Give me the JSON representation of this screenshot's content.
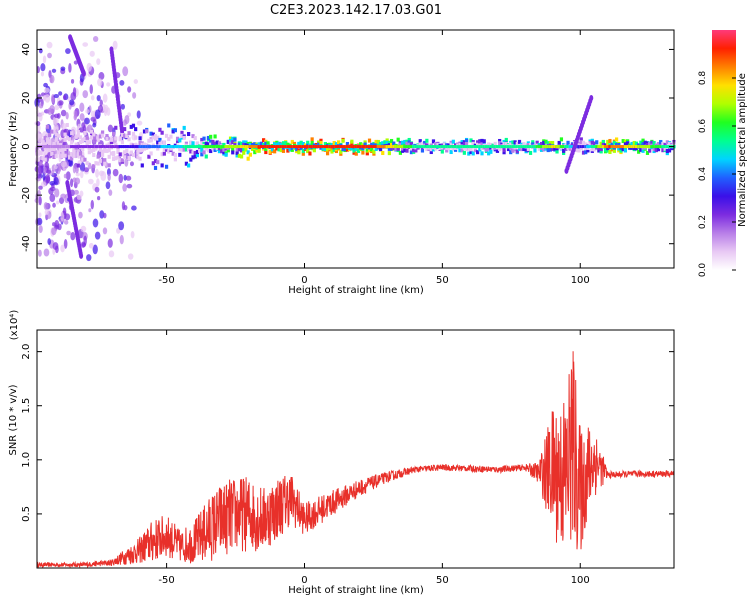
{
  "title": "C2E3.2023.142.17.03.G01",
  "colors": {
    "snr_line": "#e8302a",
    "colormap": [
      "#ffffff",
      "#e8c8f4",
      "#b87ee8",
      "#7c2ce0",
      "#3a10e8",
      "#2060ff",
      "#00d4ff",
      "#00ff90",
      "#20ff20",
      "#b0ff00",
      "#ffe000",
      "#ff8000",
      "#ff2000",
      "#ff3a7a"
    ]
  },
  "chart_data": [
    {
      "type": "heatmap",
      "title": "C2E3.2023.142.17.03.G01",
      "xlabel": "Height of straight line (km)",
      "ylabel": "Frequency (Hz)",
      "xlim": [
        -97,
        134
      ],
      "ylim": [
        -50,
        48
      ],
      "xticks": [
        -50,
        0,
        50,
        100
      ],
      "yticks": [
        -40,
        -20,
        0,
        20,
        40
      ],
      "grid": false,
      "colorbar": {
        "label": "Normalized spectral amplitude",
        "range": [
          0,
          1
        ],
        "ticks": [
          "0.0",
          "0.2",
          "0.4",
          "0.6",
          "0.8"
        ]
      },
      "features": {
        "main_band": {
          "x": [
            -97,
            134
          ],
          "freq": 0,
          "amplitude_profile": [
            [
              -97,
              0.15
            ],
            [
              -70,
              0.25
            ],
            [
              -50,
              0.45
            ],
            [
              -40,
              0.55
            ],
            [
              -25,
              0.7
            ],
            [
              -15,
              0.95
            ],
            [
              25,
              0.9
            ],
            [
              40,
              0.55
            ],
            [
              80,
              0.5
            ],
            [
              90,
              0.75
            ],
            [
              100,
              0.3
            ],
            [
              110,
              0.9
            ],
            [
              134,
              0.5
            ]
          ]
        },
        "rising_streak": {
          "x": [
            95,
            104
          ],
          "freq": [
            -10,
            20
          ],
          "amplitude": 0.2
        }
      }
    },
    {
      "type": "line",
      "xlabel": "Height of straight line (km)",
      "ylabel": "SNR (10 * v/v)",
      "y_multiplier": "(x10⁴)",
      "xlim": [
        -97,
        134
      ],
      "ylim": [
        0.0,
        2.2
      ],
      "xticks": [
        -50,
        0,
        50,
        100
      ],
      "yticks": [
        0.5,
        1.0,
        1.5,
        2.0
      ],
      "grid": false,
      "series": [
        {
          "x": [
            -97,
            -80,
            -70,
            -60,
            -55,
            -50,
            -45,
            -40,
            -35,
            -30,
            -25,
            -20,
            -15,
            -10,
            -5,
            0,
            10,
            20,
            30,
            40,
            50,
            60,
            70,
            80,
            85,
            90,
            95,
            97,
            100,
            102,
            105,
            110,
            120,
            134
          ],
          "y": [
            0.03,
            0.03,
            0.05,
            0.16,
            0.25,
            0.3,
            0.2,
            0.24,
            0.35,
            0.45,
            0.5,
            0.5,
            0.45,
            0.55,
            0.65,
            0.45,
            0.6,
            0.74,
            0.84,
            0.91,
            0.93,
            0.92,
            0.91,
            0.93,
            0.88,
            0.9,
            0.85,
            1.2,
            0.7,
            0.85,
            1.0,
            0.86,
            0.87,
            0.87
          ],
          "noise": [
            0.02,
            0.02,
            0.03,
            0.12,
            0.2,
            0.2,
            0.15,
            0.2,
            0.3,
            0.35,
            0.35,
            0.35,
            0.3,
            0.3,
            0.25,
            0.15,
            0.12,
            0.08,
            0.05,
            0.03,
            0.03,
            0.03,
            0.03,
            0.03,
            0.1,
            0.6,
            0.8,
            1.0,
            0.6,
            0.5,
            0.35,
            0.03,
            0.03,
            0.03
          ]
        }
      ]
    }
  ]
}
